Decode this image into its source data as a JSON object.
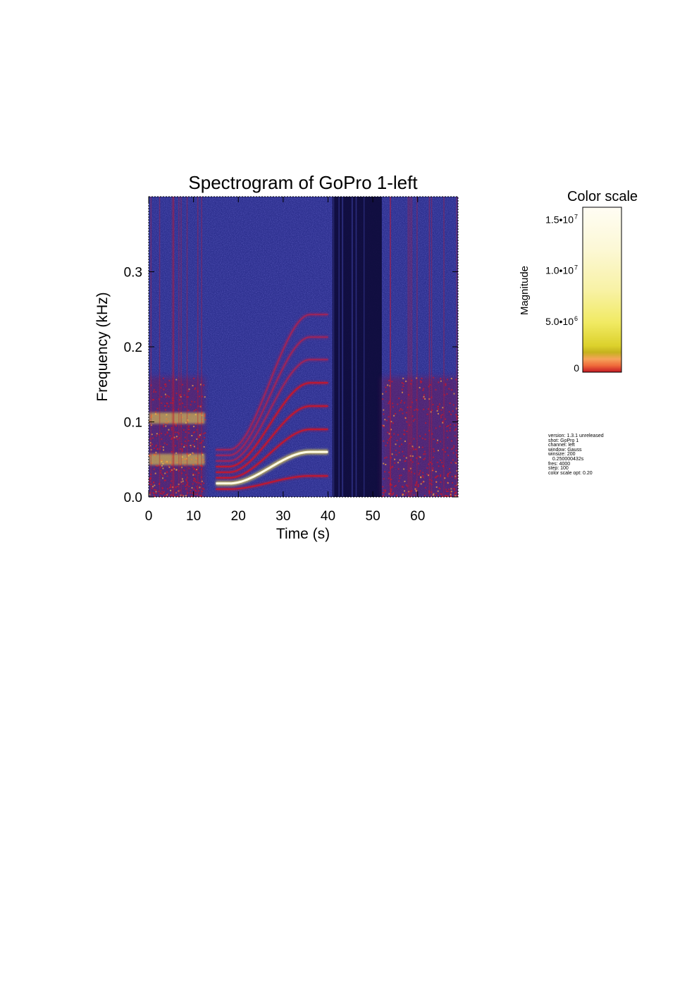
{
  "chart_data": {
    "type": "heatmap",
    "title": "Spectrogram of GoPro 1-left",
    "xlabel": "Time (s)",
    "ylabel": "Frequency (kHz)",
    "xlim": [
      0,
      69
    ],
    "ylim": [
      0,
      0.4
    ],
    "x_ticks": [
      "0",
      "10",
      "20",
      "30",
      "40",
      "50",
      "60"
    ],
    "x_tick_values": [
      0,
      10,
      20,
      30,
      40,
      50,
      60
    ],
    "y_ticks": [
      "0.0",
      "0.1",
      "0.2",
      "0.3"
    ],
    "y_tick_values": [
      0.0,
      0.1,
      0.2,
      0.3
    ],
    "segments": [
      {
        "name": "broadband",
        "t_start": 0,
        "t_end": 12.5,
        "bands_khz": [
          0.105,
          0.05
        ]
      },
      {
        "name": "sweep",
        "t_start": 13,
        "t_end": 40,
        "fundamental_start_khz": 0.015,
        "fundamental_end_khz": 0.06,
        "harmonics_end_khz": [
          0.028,
          0.06,
          0.09,
          0.121,
          0.152,
          0.183,
          0.213,
          0.243
        ]
      },
      {
        "name": "quiet",
        "t_start": 41,
        "t_end": 52
      },
      {
        "name": "broadband",
        "t_start": 52,
        "t_end": 69
      }
    ],
    "colorbar": {
      "title": "Color scale",
      "label": "Magnitude",
      "ticks": [
        "0",
        "5.0•10",
        "1.0•10",
        "1.5•10"
      ],
      "tick_exponents": [
        "",
        "6",
        "7",
        "7"
      ],
      "tick_values": [
        0,
        5000000,
        10000000,
        15000000
      ],
      "range": [
        0,
        16200000
      ]
    }
  },
  "metadata": [
    "version: 1.3.1 unreleased",
    "shot: GoPro 1",
    "channel: left",
    "window: Gauss",
    "winsize: 200",
    "   0.250000432s",
    "fres: 4000",
    "step: 100",
    "color scale opt: 0.20"
  ],
  "colors": {
    "background_dark": "#0e0b3a",
    "background_mid": "#2c2f96",
    "signal_red": "#c8162b",
    "signal_yellow": "#f6e04a",
    "signal_white": "#fffbe6"
  }
}
